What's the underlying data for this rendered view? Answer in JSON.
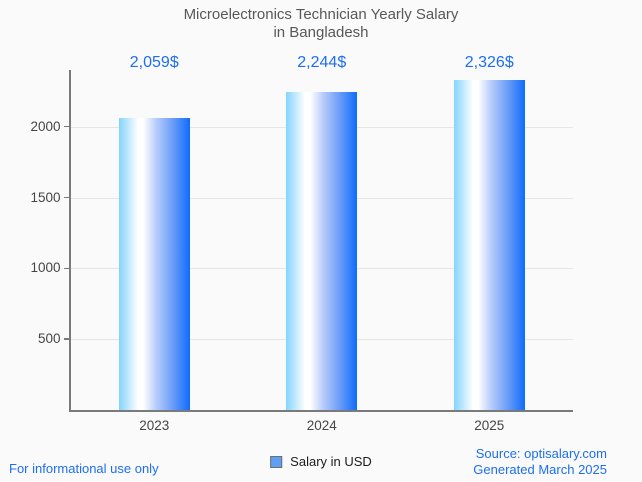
{
  "title": {
    "line1": "Microelectronics Technician Yearly Salary",
    "line2": "in Bangladesh"
  },
  "chart_data": {
    "type": "bar",
    "title": "Microelectronics Technician Yearly Salary in Bangladesh",
    "categories": [
      "2023",
      "2024",
      "2025"
    ],
    "values": [
      2059,
      2244,
      2326
    ],
    "value_labels": [
      "2,059$",
      "2,244$",
      "2,326$"
    ],
    "series_name": "Salary in USD",
    "xlabel": "",
    "ylabel": "",
    "ylim": [
      0,
      2400
    ],
    "yticks": [
      500,
      1000,
      1500,
      2000
    ],
    "grid": true,
    "legend_position": "bottom",
    "colors": {
      "value_label": "#1d6ef2",
      "axis": "#7a7a7a",
      "grid": "#e6e6e6",
      "tick_label": "#464646",
      "title": "#585858",
      "background": "#fafafa",
      "bar_gradient_stops": [
        [
          "#84d4fd",
          "0%"
        ],
        [
          "#ffffff",
          "27%"
        ],
        [
          "#ffffff",
          "34%"
        ],
        [
          "#b9cdfb",
          "52%"
        ],
        [
          "#6d9ef7",
          "75%"
        ],
        [
          "#0f6cfd",
          "100%"
        ]
      ]
    }
  },
  "legend": {
    "label": "Salary in USD",
    "marker_color": "#5d9ff5"
  },
  "footer": {
    "left": "For informational use only",
    "source": "Source: optisalary.com",
    "generated": "Generated March 2025"
  }
}
